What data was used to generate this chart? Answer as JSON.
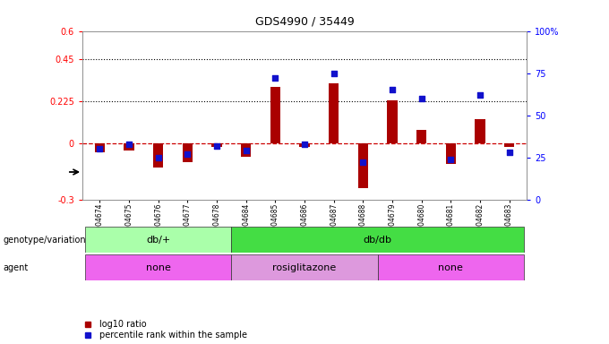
{
  "title": "GDS4990 / 35449",
  "samples": [
    "GSM904674",
    "GSM904675",
    "GSM904676",
    "GSM904677",
    "GSM904678",
    "GSM904684",
    "GSM904685",
    "GSM904686",
    "GSM904687",
    "GSM904688",
    "GSM904679",
    "GSM904680",
    "GSM904681",
    "GSM904682",
    "GSM904683"
  ],
  "log10_ratio": [
    -0.05,
    -0.04,
    -0.13,
    -0.1,
    -0.02,
    -0.07,
    0.3,
    -0.02,
    0.32,
    -0.24,
    0.23,
    0.07,
    -0.11,
    0.13,
    -0.02
  ],
  "percentile_rank": [
    30,
    33,
    25,
    27,
    32,
    29,
    72,
    33,
    75,
    22,
    65,
    60,
    24,
    62,
    28
  ],
  "ylim_left": [
    -0.3,
    0.6
  ],
  "ylim_right": [
    0,
    100
  ],
  "left_yticks": [
    -0.3,
    0,
    0.225,
    0.45,
    0.6
  ],
  "left_yticklabels": [
    "-0.3",
    "0",
    "0.225",
    "0.45",
    "0.6"
  ],
  "right_yticks": [
    0,
    25,
    50,
    75,
    100
  ],
  "right_yticklabels": [
    "0",
    "25",
    "50",
    "75",
    "100%"
  ],
  "hlines": [
    0.225,
    0.45
  ],
  "bar_color": "#aa0000",
  "dot_color": "#1111cc",
  "dashed_line_color": "#cc0000",
  "genotype_groups": [
    {
      "label": "db/+",
      "start": 0,
      "end": 5,
      "color": "#aaffaa"
    },
    {
      "label": "db/db",
      "start": 5,
      "end": 15,
      "color": "#44dd44"
    }
  ],
  "agent_groups": [
    {
      "label": "none",
      "start": 0,
      "end": 5,
      "color": "#ee66ee"
    },
    {
      "label": "rosiglitazone",
      "start": 5,
      "end": 10,
      "color": "#dd99dd"
    },
    {
      "label": "none",
      "start": 10,
      "end": 15,
      "color": "#ee66ee"
    }
  ],
  "legend_labels": [
    "log10 ratio",
    "percentile rank within the sample"
  ],
  "legend_colors": [
    "#aa0000",
    "#1111cc"
  ]
}
